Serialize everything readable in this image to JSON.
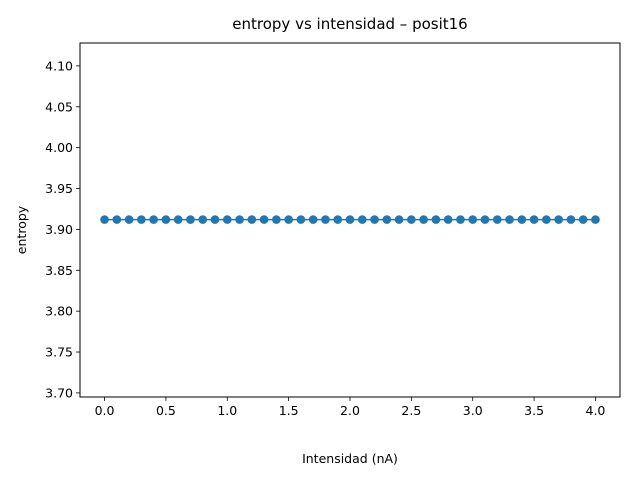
{
  "chart_data": {
    "type": "line",
    "title": "entropy vs intensidad – posit16",
    "xlabel": "Intensidad (nA)",
    "ylabel": "entropy",
    "xlim": [
      -0.2,
      4.2
    ],
    "ylim": [
      3.695,
      4.128
    ],
    "xticks": [
      0.0,
      0.5,
      1.0,
      1.5,
      2.0,
      2.5,
      3.0,
      3.5,
      4.0
    ],
    "xtick_labels": [
      "0.0",
      "0.5",
      "1.0",
      "1.5",
      "2.0",
      "2.5",
      "3.0",
      "3.5",
      "4.0"
    ],
    "yticks": [
      3.7,
      3.75,
      3.8,
      3.85,
      3.9,
      3.95,
      4.0,
      4.05,
      4.1
    ],
    "ytick_labels": [
      "3.70",
      "3.75",
      "3.80",
      "3.85",
      "3.90",
      "3.95",
      "4.00",
      "4.05",
      "4.10"
    ],
    "grid": false,
    "legend": null,
    "series": [
      {
        "color": "#1f77b4",
        "marker": "circle",
        "x": [
          0.0,
          0.1,
          0.2,
          0.3,
          0.4,
          0.5,
          0.6,
          0.7,
          0.8,
          0.9,
          1.0,
          1.1,
          1.2,
          1.3,
          1.4,
          1.5,
          1.6,
          1.7,
          1.8,
          1.9,
          2.0,
          2.1,
          2.2,
          2.3,
          2.4,
          2.5,
          2.6,
          2.7,
          2.8,
          2.9,
          3.0,
          3.1,
          3.2,
          3.3,
          3.4,
          3.5,
          3.6,
          3.7,
          3.8,
          3.9,
          4.0
        ],
        "y": [
          3.912,
          3.912,
          3.912,
          3.912,
          3.912,
          3.912,
          3.912,
          3.912,
          3.912,
          3.912,
          3.912,
          3.912,
          3.912,
          3.912,
          3.912,
          3.912,
          3.912,
          3.912,
          3.912,
          3.912,
          3.912,
          3.912,
          3.912,
          3.912,
          3.912,
          3.912,
          3.912,
          3.912,
          3.912,
          3.912,
          3.912,
          3.912,
          3.912,
          3.912,
          3.912,
          3.912,
          3.912,
          3.912,
          3.912,
          3.912,
          3.912
        ]
      }
    ]
  }
}
